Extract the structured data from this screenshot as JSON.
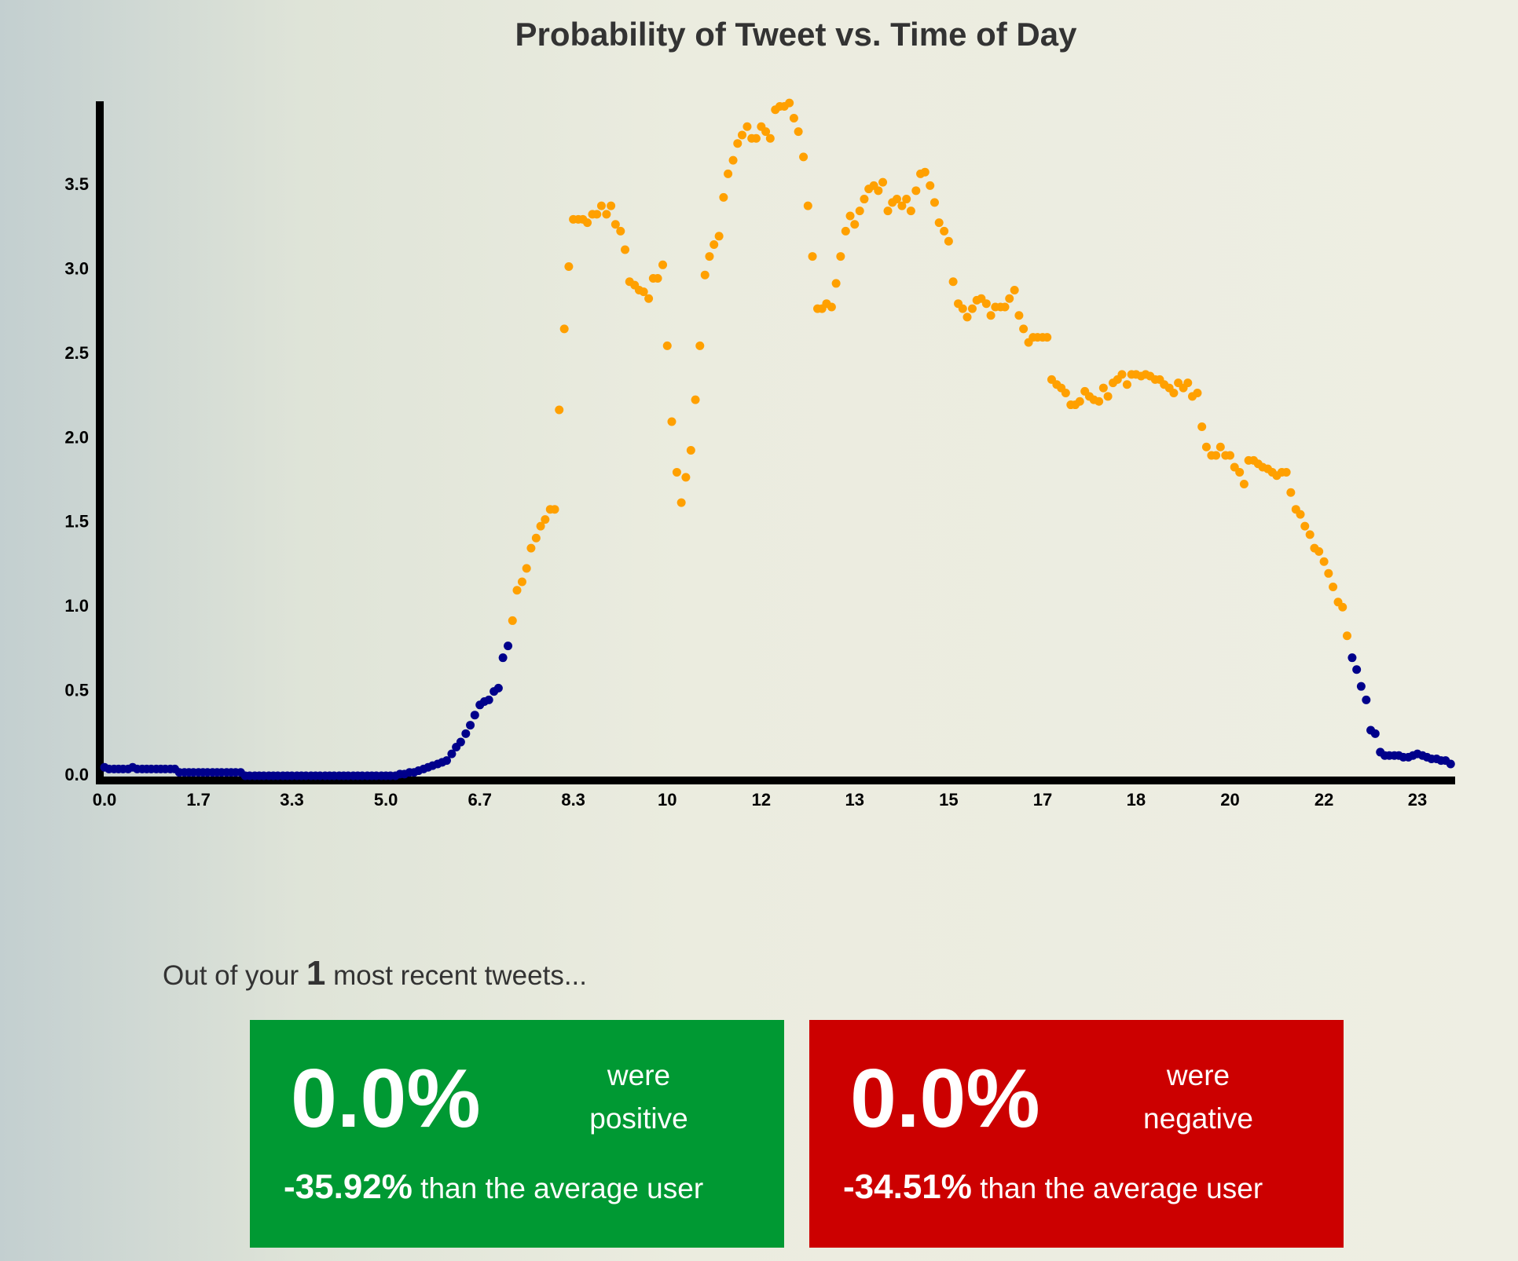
{
  "chart_data": {
    "type": "scatter",
    "title": "Probability of Tweet vs. Time of Day",
    "xlim": [
      0,
      24
    ],
    "ylim": [
      0,
      4
    ],
    "xticks": [
      {
        "value": 0,
        "label": "0.0"
      },
      {
        "value": 1.67,
        "label": "1.7"
      },
      {
        "value": 3.33,
        "label": "3.3"
      },
      {
        "value": 5,
        "label": "5.0"
      },
      {
        "value": 6.67,
        "label": "6.7"
      },
      {
        "value": 8.33,
        "label": "8.3"
      },
      10,
      {
        "value": 11.67,
        "label": "12"
      },
      {
        "value": 13.33,
        "label": "13"
      },
      15,
      {
        "value": 16.67,
        "label": "17"
      },
      {
        "value": 18.33,
        "label": "18"
      },
      20,
      {
        "value": 21.67,
        "label": "22"
      },
      {
        "value": 23.33,
        "label": "23"
      }
    ],
    "yticks": [
      {
        "value": 0,
        "label": "0.0"
      },
      0.5,
      {
        "value": 1,
        "label": "1.0"
      },
      1.5,
      {
        "value": 2,
        "label": "2.0"
      },
      2.5,
      {
        "value": 3,
        "label": "3.0"
      },
      3.5
    ],
    "grid": false,
    "series": [
      {
        "color": "#00008b",
        "x": [
          0,
          0.08,
          0.17,
          0.25,
          0.33,
          0.42,
          0.5,
          0.58,
          0.67,
          0.75,
          0.83,
          0.92,
          1,
          1.08,
          1.17,
          1.25,
          1.33,
          1.42,
          1.5,
          1.58,
          1.67,
          1.75,
          1.83,
          1.92,
          2,
          2.08,
          2.17,
          2.25,
          2.33,
          2.42,
          2.5,
          2.58,
          2.67,
          2.75,
          2.83,
          2.92,
          3,
          3.08,
          3.17,
          3.25,
          3.33,
          3.42,
          3.5,
          3.58,
          3.67,
          3.75,
          3.83,
          3.92,
          4,
          4.08,
          4.17,
          4.25,
          4.33,
          4.42,
          4.5,
          4.58,
          4.67,
          4.75,
          4.83,
          4.92,
          5,
          5.08,
          5.17,
          5.25,
          5.33,
          5.42,
          5.5,
          5.58,
          5.67,
          5.75,
          5.83,
          5.92,
          6,
          6.08,
          6.17,
          6.25,
          6.33,
          6.42,
          6.5,
          6.58,
          6.67,
          6.75,
          6.83,
          6.92,
          7,
          7.08,
          7.17
        ],
        "values": [
          0.05,
          0.04,
          0.04,
          0.04,
          0.04,
          0.04,
          0.05,
          0.04,
          0.04,
          0.04,
          0.04,
          0.04,
          0.04,
          0.04,
          0.04,
          0.04,
          0.02,
          0.02,
          0.02,
          0.02,
          0.02,
          0.02,
          0.02,
          0.02,
          0.02,
          0.02,
          0.02,
          0.02,
          0.02,
          0.02,
          0,
          0,
          0,
          0,
          0,
          0,
          0,
          0,
          0,
          0,
          0,
          0,
          0,
          0,
          0,
          0,
          0,
          0,
          0,
          0,
          0,
          0,
          0,
          0,
          0,
          0,
          0,
          0,
          0,
          0,
          0,
          0,
          0,
          0.01,
          0.01,
          0.02,
          0.02,
          0.03,
          0.04,
          0.05,
          0.06,
          0.07,
          0.08,
          0.09,
          0.13,
          0.17,
          0.2,
          0.25,
          0.3,
          0.36,
          0.42,
          0.44,
          0.45,
          0.5,
          0.52,
          0.7,
          0.77
        ]
      },
      {
        "color": "#ffa000",
        "x": [
          7.25,
          7.33,
          7.42,
          7.5,
          7.58,
          7.67,
          7.75,
          7.83,
          7.92,
          8,
          8.08,
          8.17,
          8.25,
          8.33,
          8.42,
          8.5,
          8.58,
          8.67,
          8.75,
          8.83,
          8.92,
          9,
          9.08,
          9.17,
          9.25,
          9.33,
          9.42,
          9.5,
          9.58,
          9.67,
          9.75,
          9.83,
          9.92,
          10,
          10.08,
          10.17,
          10.25,
          10.33,
          10.42,
          10.5,
          10.58,
          10.67,
          10.75,
          10.83,
          10.92,
          11,
          11.08,
          11.17,
          11.25,
          11.33,
          11.42,
          11.5,
          11.58,
          11.67,
          11.75,
          11.83,
          11.92,
          12,
          12.08,
          12.17,
          12.25,
          12.33,
          12.42,
          12.5,
          12.58,
          12.67,
          12.75,
          12.83,
          12.92,
          13,
          13.08,
          13.17,
          13.25,
          13.33,
          13.42,
          13.5,
          13.58,
          13.67,
          13.75,
          13.83,
          13.92,
          14,
          14.08,
          14.17,
          14.25,
          14.33,
          14.42,
          14.5,
          14.58,
          14.67,
          14.75,
          14.83,
          14.92,
          15,
          15.08,
          15.17,
          15.25,
          15.33,
          15.42,
          15.5,
          15.58,
          15.67,
          15.75,
          15.83,
          15.92,
          16,
          16.08,
          16.17,
          16.25,
          16.33,
          16.42,
          16.5,
          16.58,
          16.67,
          16.75,
          16.83,
          16.92,
          17,
          17.08,
          17.17,
          17.25,
          17.33,
          17.42,
          17.5,
          17.58,
          17.67,
          17.75,
          17.83,
          17.92,
          18,
          18.08,
          18.17,
          18.25,
          18.33,
          18.42,
          18.5,
          18.58,
          18.67,
          18.75,
          18.83,
          18.92,
          19,
          19.08,
          19.17,
          19.25,
          19.33,
          19.42,
          19.5,
          19.58,
          19.67,
          19.75,
          19.83,
          19.92,
          20,
          20.08,
          20.17,
          20.25,
          20.33,
          20.42,
          20.5,
          20.58,
          20.67,
          20.75,
          20.83,
          20.92,
          21,
          21.08,
          21.17,
          21.25,
          21.33,
          21.42,
          21.5,
          21.58,
          21.67,
          21.75,
          21.83,
          21.92,
          22,
          22.08
        ],
        "values": [
          0.92,
          1.1,
          1.15,
          1.23,
          1.35,
          1.41,
          1.48,
          1.52,
          1.58,
          1.58,
          2.17,
          2.65,
          3.02,
          3.3,
          3.3,
          3.3,
          3.28,
          3.33,
          3.33,
          3.38,
          3.33,
          3.38,
          3.27,
          3.23,
          3.12,
          2.93,
          2.91,
          2.88,
          2.87,
          2.83,
          2.95,
          2.95,
          3.03,
          2.55,
          2.1,
          1.8,
          1.62,
          1.77,
          1.93,
          2.23,
          2.55,
          2.97,
          3.08,
          3.15,
          3.2,
          3.43,
          3.57,
          3.65,
          3.75,
          3.8,
          3.85,
          3.78,
          3.78,
          3.85,
          3.82,
          3.78,
          3.95,
          3.97,
          3.97,
          3.99,
          3.9,
          3.82,
          3.67,
          3.38,
          3.08,
          2.77,
          2.77,
          2.8,
          2.78,
          2.92,
          3.08,
          3.23,
          3.32,
          3.27,
          3.35,
          3.42,
          3.48,
          3.5,
          3.47,
          3.52,
          3.35,
          3.4,
          3.42,
          3.38,
          3.42,
          3.35,
          3.47,
          3.57,
          3.58,
          3.5,
          3.4,
          3.28,
          3.23,
          3.17,
          2.93,
          2.8,
          2.77,
          2.72,
          2.77,
          2.82,
          2.83,
          2.8,
          2.73,
          2.78,
          2.78,
          2.78,
          2.83,
          2.88,
          2.73,
          2.65,
          2.57,
          2.6,
          2.6,
          2.6,
          2.6,
          2.35,
          2.32,
          2.3,
          2.27,
          2.2,
          2.2,
          2.22,
          2.28,
          2.25,
          2.23,
          2.22,
          2.3,
          2.25,
          2.33,
          2.35,
          2.38,
          2.32,
          2.38,
          2.38,
          2.37,
          2.38,
          2.37,
          2.35,
          2.35,
          2.32,
          2.3,
          2.27,
          2.33,
          2.3,
          2.33,
          2.25,
          2.27,
          2.07,
          1.95,
          1.9,
          1.9,
          1.95,
          1.9,
          1.9,
          1.83,
          1.8,
          1.73,
          1.87,
          1.87,
          1.85,
          1.83,
          1.82,
          1.8,
          1.78,
          1.8,
          1.8,
          1.68,
          1.58,
          1.55,
          1.48,
          1.43,
          1.35,
          1.33,
          1.27,
          1.2,
          1.12,
          1.03,
          1,
          0.83
        ]
      },
      {
        "color": "#00008b",
        "x": [
          22.17,
          22.25,
          22.33,
          22.42,
          22.5,
          22.58,
          22.67,
          22.75,
          22.83,
          22.92,
          23,
          23.08,
          23.17,
          23.25,
          23.33,
          23.42,
          23.5,
          23.58,
          23.67,
          23.75,
          23.83,
          23.92
        ],
        "values": [
          0.7,
          0.63,
          0.53,
          0.45,
          0.27,
          0.25,
          0.14,
          0.12,
          0.12,
          0.12,
          0.12,
          0.11,
          0.11,
          0.12,
          0.13,
          0.12,
          0.11,
          0.1,
          0.1,
          0.09,
          0.09,
          0.07
        ]
      }
    ]
  },
  "summary": {
    "intro_prefix": "Out of your",
    "count": "1",
    "intro_suffix": "most recent tweets...",
    "cards": [
      {
        "color": "#009933",
        "percent": "0.0%",
        "line1": "were",
        "line2": "positive",
        "diff": "-35.92%",
        "diff_suffix": "than the average user"
      },
      {
        "color": "#cc0000",
        "percent": "0.0%",
        "line1": "were",
        "line2": "negative",
        "diff": "-34.51%",
        "diff_suffix": "than the average user"
      }
    ]
  }
}
